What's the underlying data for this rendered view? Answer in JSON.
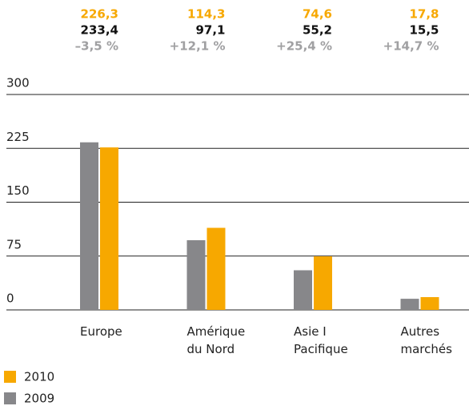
{
  "chart_data": {
    "type": "bar",
    "categories": [
      "Europe",
      "Amérique\ndu Nord",
      "Asie I\nPacifique",
      "Autres\nmarchés"
    ],
    "series": [
      {
        "name": "2010",
        "color": "#f7a800",
        "values": [
          226.3,
          114.3,
          74.6,
          17.8
        ],
        "value_labels": [
          "226,3",
          "114,3",
          "74,6",
          "17,8"
        ]
      },
      {
        "name": "2009",
        "color": "#87878a",
        "values": [
          233.4,
          97.1,
          55.2,
          15.5
        ],
        "value_labels": [
          "233,4",
          "97,1",
          "55,2",
          "15,5"
        ]
      }
    ],
    "change_labels": [
      "–3,5 %",
      "+12,1 %",
      "+25,4 %",
      "+14,7 %"
    ],
    "ylim": [
      0,
      300
    ],
    "yticks": [
      0,
      75,
      150,
      225,
      300
    ],
    "grid": true
  }
}
